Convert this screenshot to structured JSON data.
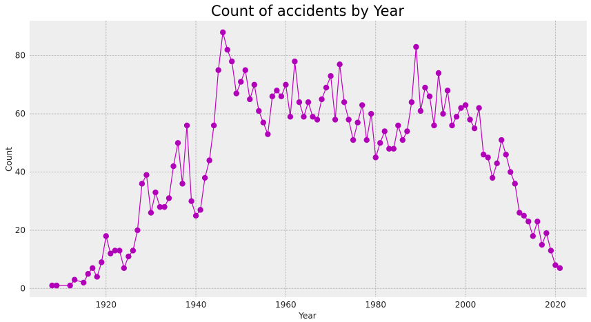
{
  "chart_data": {
    "type": "line",
    "title": "Count of accidents by Year",
    "xlabel": "Year",
    "ylabel": "Count",
    "xlim": [
      1903,
      2027
    ],
    "ylim": [
      -3,
      92
    ],
    "xticks": [
      1920,
      1940,
      1960,
      1980,
      2000,
      2020
    ],
    "yticks": [
      0,
      20,
      40,
      60,
      80
    ],
    "grid": true,
    "colors": {
      "line": "#c000c0",
      "marker": "#b000b8",
      "plot_bg": "#eeeeee"
    },
    "series": [
      {
        "x": [
          1908,
          1909,
          1912,
          1913,
          1915,
          1916,
          1917,
          1918,
          1919,
          1920,
          1921,
          1922,
          1923,
          1924,
          1925,
          1926,
          1927,
          1928,
          1929,
          1930,
          1931,
          1932,
          1933,
          1934,
          1935,
          1936,
          1937,
          1938,
          1939,
          1940,
          1941,
          1942,
          1943,
          1944,
          1945,
          1946,
          1947,
          1948,
          1949,
          1950,
          1951,
          1952,
          1953,
          1954,
          1955,
          1956,
          1957,
          1958,
          1959,
          1960,
          1961,
          1962,
          1963,
          1964,
          1965,
          1966,
          1967,
          1968,
          1969,
          1970,
          1971,
          1972,
          1973,
          1974,
          1975,
          1976,
          1977,
          1978,
          1979,
          1980,
          1981,
          1982,
          1983,
          1984,
          1985,
          1986,
          1987,
          1988,
          1989,
          1990,
          1991,
          1992,
          1993,
          1994,
          1995,
          1996,
          1997,
          1998,
          1999,
          2000,
          2001,
          2002,
          2003,
          2004,
          2005,
          2006,
          2007,
          2008,
          2009,
          2010,
          2011,
          2012,
          2013,
          2014,
          2015,
          2016,
          2017,
          2018,
          2019,
          2020,
          2021
        ],
        "values": [
          1,
          1,
          1,
          3,
          2,
          5,
          7,
          4,
          9,
          18,
          12,
          13,
          13,
          7,
          11,
          13,
          20,
          36,
          39,
          26,
          33,
          28,
          28,
          31,
          42,
          50,
          36,
          56,
          30,
          25,
          27,
          38,
          44,
          56,
          75,
          88,
          82,
          78,
          67,
          71,
          75,
          65,
          70,
          61,
          57,
          53,
          66,
          68,
          66,
          70,
          59,
          78,
          64,
          59,
          64,
          59,
          58,
          65,
          69,
          73,
          58,
          77,
          64,
          58,
          51,
          57,
          63,
          51,
          60,
          45,
          50,
          54,
          48,
          48,
          56,
          51,
          54,
          64,
          83,
          61,
          69,
          66,
          56,
          74,
          60,
          68,
          56,
          59,
          62,
          63,
          58,
          55,
          62,
          46,
          45,
          38,
          43,
          51,
          46,
          40,
          36,
          26,
          25,
          23,
          18,
          23,
          15,
          19,
          13,
          8,
          7
        ]
      }
    ]
  }
}
